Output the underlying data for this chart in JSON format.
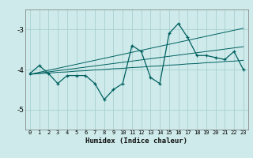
{
  "xlabel": "Humidex (Indice chaleur)",
  "bg_color": "#ceeaea",
  "grid_color": "#aad0d0",
  "line_color": "#006060",
  "x": [
    0,
    1,
    2,
    3,
    4,
    5,
    6,
    7,
    8,
    9,
    10,
    11,
    12,
    13,
    14,
    15,
    16,
    17,
    18,
    19,
    20,
    21,
    22,
    23
  ],
  "y_main": [
    -4.1,
    -3.9,
    -4.1,
    -4.35,
    -4.15,
    -4.15,
    -4.15,
    -4.35,
    -4.75,
    -4.5,
    -4.35,
    -3.4,
    -3.55,
    -4.2,
    -4.35,
    -3.1,
    -2.85,
    -3.2,
    -3.65,
    -3.65,
    -3.7,
    -3.75,
    -3.55,
    -4.0
  ],
  "y_line1": [
    -4.12,
    -4.1,
    -4.09,
    -4.07,
    -4.06,
    -4.04,
    -4.03,
    -4.01,
    -4.0,
    -3.98,
    -3.97,
    -3.95,
    -3.94,
    -3.92,
    -3.91,
    -3.89,
    -3.88,
    -3.86,
    -3.85,
    -3.83,
    -3.82,
    -3.8,
    -3.79,
    -3.77
  ],
  "y_line2": [
    -4.12,
    -4.09,
    -4.06,
    -4.03,
    -4.0,
    -3.97,
    -3.94,
    -3.91,
    -3.88,
    -3.85,
    -3.82,
    -3.79,
    -3.76,
    -3.73,
    -3.7,
    -3.67,
    -3.64,
    -3.61,
    -3.58,
    -3.55,
    -3.52,
    -3.49,
    -3.46,
    -3.43
  ],
  "y_line3": [
    -4.12,
    -4.07,
    -4.02,
    -3.97,
    -3.92,
    -3.87,
    -3.82,
    -3.77,
    -3.72,
    -3.67,
    -3.62,
    -3.57,
    -3.52,
    -3.47,
    -3.42,
    -3.37,
    -3.32,
    -3.27,
    -3.22,
    -3.17,
    -3.12,
    -3.07,
    -3.02,
    -2.97
  ],
  "ylim": [
    -5.5,
    -2.5
  ],
  "yticks": [
    -5,
    -4,
    -3
  ],
  "xlim": [
    -0.5,
    23.5
  ],
  "xticks": [
    0,
    1,
    2,
    3,
    4,
    5,
    6,
    7,
    8,
    9,
    10,
    11,
    12,
    13,
    14,
    15,
    16,
    17,
    18,
    19,
    20,
    21,
    22,
    23
  ]
}
